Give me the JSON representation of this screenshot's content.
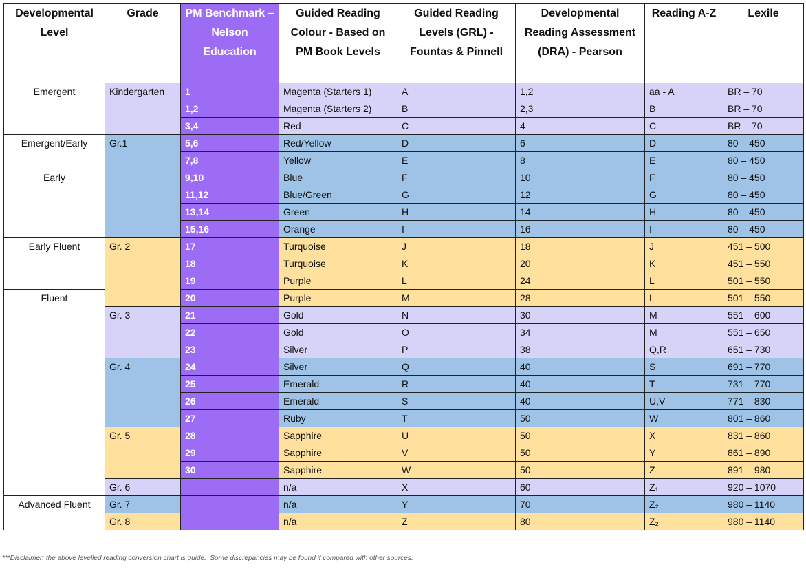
{
  "table": {
    "header": [
      "Developmental Level",
      "Grade",
      "PM Benchmark – Nelson Education",
      "Guided Reading Colour - Based on PM Book Levels",
      "Guided Reading Levels (GRL) - Fountas & Pinnell",
      "Developmental Reading Assessment (DRA) - Pearson",
      "Reading A-Z",
      "Lexile"
    ],
    "rows": [
      [
        "Emergent",
        "Kindergarten",
        "1",
        "Magenta (Starters 1)",
        "A",
        "1,2",
        "aa - A",
        "BR – 70"
      ],
      [
        null,
        null,
        "1,2",
        "Magenta (Starters 2)",
        "B",
        "2,3",
        "B",
        "BR – 70"
      ],
      [
        null,
        null,
        "3,4",
        "Red",
        "C",
        "4",
        "C",
        "BR – 70"
      ],
      [
        "Emergent/Early",
        "Gr.1",
        "5,6",
        "Red/Yellow",
        "D",
        "6",
        "D",
        "80 – 450"
      ],
      [
        null,
        null,
        "7,8",
        "Yellow",
        "E",
        "8",
        "E",
        "80 – 450"
      ],
      [
        "Early",
        null,
        "9,10",
        "Blue",
        "F",
        "10",
        "F",
        "80 – 450"
      ],
      [
        null,
        null,
        "11,12",
        "Blue/Green",
        "G",
        "12",
        "G",
        "80 – 450"
      ],
      [
        null,
        null,
        "13,14",
        "Green",
        "H",
        "14",
        "H",
        "80 – 450"
      ],
      [
        null,
        null,
        "15,16",
        "Orange",
        "I",
        "16",
        "I",
        "80 – 450"
      ],
      [
        "Early Fluent",
        "Gr. 2",
        "17",
        "Turquoise",
        "J",
        "18",
        "J",
        "451 – 500"
      ],
      [
        null,
        null,
        "18",
        "Turquoise",
        "K",
        "20",
        "K",
        "451 – 550"
      ],
      [
        null,
        null,
        "19",
        "Purple",
        "L",
        "24",
        "L",
        "501 – 550"
      ],
      [
        "Fluent",
        null,
        "20",
        "Purple",
        "M",
        "28",
        "L",
        "501 – 550"
      ],
      [
        null,
        "Gr. 3",
        "21",
        "Gold",
        "N",
        "30",
        "M",
        "551 – 600"
      ],
      [
        null,
        null,
        "22",
        "Gold",
        "O",
        "34",
        "M",
        "551 – 650"
      ],
      [
        null,
        null,
        "23",
        "Silver",
        "P",
        "38",
        "Q,R",
        "651 – 730"
      ],
      [
        null,
        "Gr. 4",
        "24",
        "Silver",
        "Q",
        "40",
        "S",
        "691 – 770"
      ],
      [
        null,
        null,
        "25",
        "Emerald",
        "R",
        "40",
        "T",
        "731 – 770"
      ],
      [
        null,
        null,
        "26",
        "Emerald",
        "S",
        "40",
        "U,V",
        "771 – 830"
      ],
      [
        null,
        null,
        "27",
        "Ruby",
        "T",
        "50",
        "W",
        "801 – 860"
      ],
      [
        null,
        "Gr. 5",
        "28",
        "Sapphire",
        "U",
        "50",
        "X",
        "831 – 860"
      ],
      [
        null,
        null,
        "29",
        "Sapphire",
        "V",
        "50",
        "Y",
        "861 – 890"
      ],
      [
        null,
        null,
        "30",
        "Sapphire",
        "W",
        "50",
        "Z",
        "891 – 980"
      ],
      [
        null,
        "Gr. 6",
        null,
        "n/a",
        "X",
        "60",
        "Z₁",
        "920 – 1070"
      ],
      [
        "Advanced Fluent",
        "Gr. 7",
        null,
        "n/a",
        "Y",
        "70",
        "Z₂",
        "980 – 1140"
      ],
      [
        null,
        "Gr. 8",
        null,
        "n/a",
        "Z",
        "80",
        "Z₂",
        "980 – 1140"
      ]
    ]
  },
  "footer": {
    "disclaimer": "***Disclaimer: the above levelled reading conversion chart is guide.  Some discrepancies may be found if compared with other sources."
  }
}
